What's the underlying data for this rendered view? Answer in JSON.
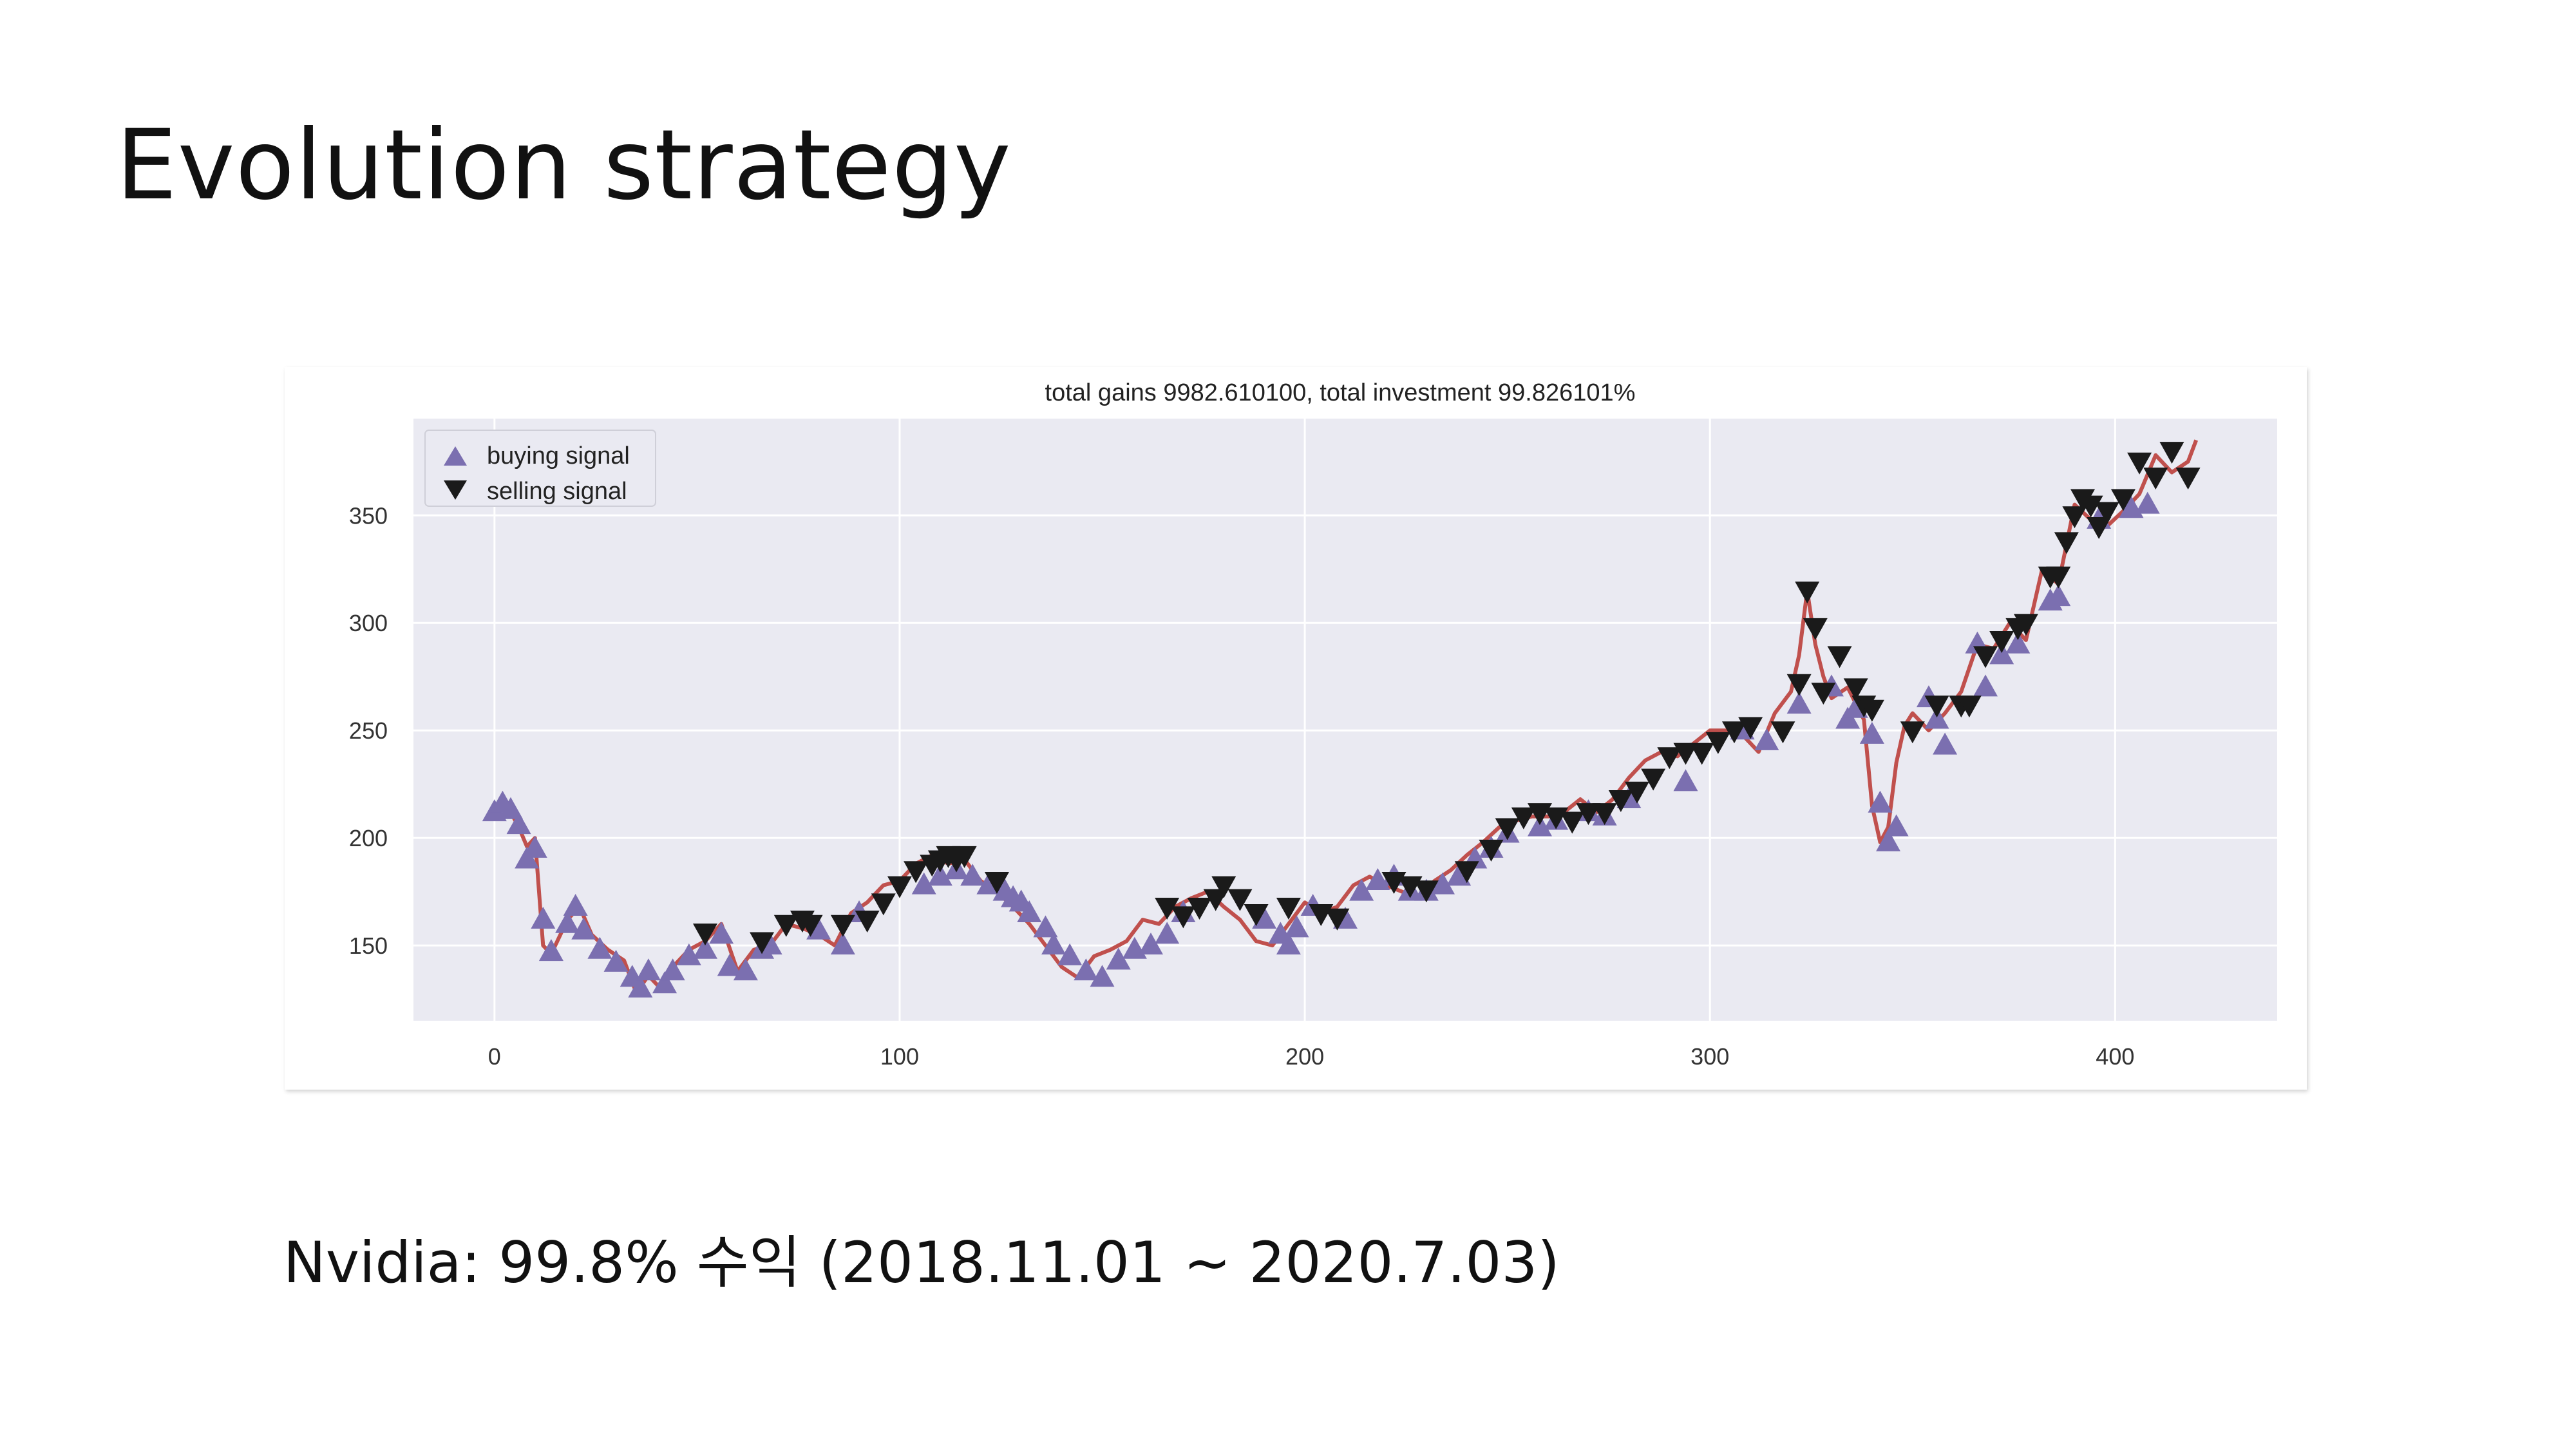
{
  "slide": {
    "title": "Evolution strategy",
    "caption": "Nvidia: 99.8% 수익 (2018.11.01 ~ 2020.7.03)"
  },
  "chart_data": {
    "type": "line",
    "title": "total gains 9982.610100, total investment 99.826101%",
    "xlabel": "",
    "ylabel": "",
    "xlim": [
      -20,
      440
    ],
    "ylim": [
      115,
      395
    ],
    "x_ticks": [
      0,
      100,
      200,
      300,
      400
    ],
    "y_ticks": [
      150,
      200,
      250,
      300,
      350
    ],
    "grid": true,
    "legend_position": "top-left",
    "colors": {
      "line": "#c0504d",
      "buy": "#7b6fb0",
      "sell": "#1a1a1a",
      "plot_bg": "#eaeaf2",
      "grid": "#ffffff"
    },
    "legend": [
      {
        "name": "buying signal",
        "marker": "triangle-up",
        "color": "#7b6fb0"
      },
      {
        "name": "selling signal",
        "marker": "triangle-down",
        "color": "#1a1a1a"
      }
    ],
    "price_series": {
      "name": "close",
      "x": [
        0,
        2,
        4,
        6,
        8,
        10,
        11,
        12,
        14,
        18,
        21,
        24,
        28,
        32,
        35,
        38,
        41,
        44,
        48,
        52,
        56,
        60,
        64,
        68,
        72,
        76,
        80,
        84,
        88,
        92,
        96,
        100,
        104,
        108,
        112,
        116,
        120,
        124,
        128,
        132,
        136,
        140,
        144,
        148,
        152,
        156,
        160,
        164,
        168,
        172,
        176,
        180,
        184,
        188,
        192,
        196,
        200,
        204,
        208,
        212,
        216,
        220,
        224,
        228,
        232,
        236,
        240,
        244,
        248,
        252,
        256,
        260,
        264,
        268,
        272,
        276,
        280,
        284,
        288,
        292,
        296,
        300,
        304,
        308,
        312,
        316,
        320,
        322,
        324,
        326,
        328,
        330,
        334,
        338,
        340,
        342,
        344,
        346,
        348,
        350,
        354,
        358,
        362,
        366,
        370,
        374,
        378,
        382,
        386,
        390,
        394,
        398,
        402,
        406,
        410,
        414,
        418,
        420
      ],
      "y": [
        210,
        218,
        212,
        205,
        196,
        200,
        175,
        150,
        146,
        162,
        168,
        155,
        148,
        143,
        128,
        136,
        130,
        140,
        148,
        152,
        160,
        138,
        148,
        150,
        160,
        158,
        155,
        150,
        165,
        170,
        178,
        180,
        188,
        192,
        188,
        190,
        180,
        175,
        168,
        160,
        150,
        140,
        135,
        145,
        148,
        152,
        162,
        160,
        168,
        172,
        175,
        168,
        162,
        152,
        150,
        160,
        170,
        165,
        168,
        178,
        182,
        178,
        175,
        172,
        180,
        185,
        192,
        198,
        205,
        208,
        210,
        210,
        212,
        218,
        212,
        218,
        228,
        236,
        240,
        238,
        244,
        250,
        250,
        248,
        240,
        258,
        268,
        285,
        315,
        290,
        275,
        265,
        270,
        255,
        215,
        198,
        205,
        235,
        252,
        258,
        250,
        258,
        268,
        290,
        288,
        300,
        292,
        325,
        318,
        355,
        348,
        345,
        352,
        360,
        378,
        370,
        375,
        385
      ]
    },
    "buy_signals": {
      "name": "buying signal",
      "x": [
        0,
        2,
        4,
        6,
        8,
        10,
        12,
        14,
        18,
        20,
        22,
        26,
        30,
        34,
        36,
        38,
        42,
        44,
        48,
        52,
        56,
        58,
        62,
        66,
        68,
        80,
        86,
        90,
        106,
        110,
        114,
        118,
        122,
        126,
        128,
        130,
        132,
        136,
        138,
        142,
        146,
        150,
        154,
        158,
        162,
        166,
        170,
        190,
        194,
        196,
        198,
        202,
        210,
        214,
        218,
        222,
        226,
        230,
        234,
        238,
        242,
        246,
        250,
        258,
        262,
        270,
        274,
        280,
        294,
        308,
        314,
        322,
        330,
        334,
        336,
        340,
        342,
        344,
        346,
        354,
        356,
        358,
        366,
        368,
        372,
        376,
        384,
        386,
        396,
        404,
        408
      ],
      "y": [
        212,
        216,
        213,
        206,
        190,
        195,
        162,
        147,
        160,
        168,
        157,
        148,
        142,
        135,
        130,
        138,
        132,
        138,
        145,
        148,
        155,
        140,
        138,
        148,
        150,
        157,
        150,
        165,
        178,
        182,
        185,
        182,
        178,
        175,
        172,
        170,
        165,
        158,
        150,
        145,
        138,
        135,
        143,
        148,
        150,
        155,
        165,
        162,
        155,
        150,
        158,
        168,
        162,
        175,
        180,
        182,
        175,
        175,
        178,
        182,
        190,
        195,
        202,
        205,
        208,
        212,
        210,
        218,
        226,
        250,
        245,
        262,
        270,
        255,
        260,
        248,
        216,
        198,
        205,
        265,
        255,
        243,
        290,
        270,
        285,
        290,
        310,
        312,
        348,
        353,
        355
      ]
    },
    "sell_signals": {
      "name": "selling signal",
      "x": [
        52,
        66,
        72,
        76,
        78,
        86,
        92,
        96,
        100,
        104,
        108,
        110,
        112,
        114,
        116,
        124,
        166,
        170,
        174,
        178,
        180,
        184,
        188,
        196,
        204,
        208,
        222,
        226,
        230,
        240,
        246,
        250,
        254,
        258,
        262,
        266,
        270,
        274,
        278,
        282,
        286,
        290,
        294,
        298,
        302,
        306,
        310,
        318,
        322,
        324,
        326,
        328,
        332,
        336,
        338,
        340,
        350,
        356,
        362,
        364,
        368,
        372,
        376,
        378,
        384,
        386,
        388,
        390,
        392,
        394,
        396,
        398,
        402,
        406,
        410,
        414,
        418
      ],
      "y": [
        156,
        152,
        160,
        162,
        160,
        160,
        162,
        170,
        178,
        185,
        188,
        190,
        192,
        190,
        192,
        180,
        168,
        164,
        168,
        172,
        178,
        172,
        165,
        168,
        165,
        163,
        180,
        178,
        176,
        185,
        195,
        205,
        210,
        212,
        210,
        208,
        212,
        212,
        218,
        222,
        228,
        238,
        240,
        240,
        245,
        250,
        252,
        250,
        272,
        315,
        298,
        268,
        285,
        270,
        262,
        260,
        250,
        262,
        262,
        262,
        285,
        292,
        298,
        300,
        322,
        322,
        338,
        350,
        358,
        355,
        345,
        352,
        358,
        375,
        368,
        380,
        368
      ]
    }
  }
}
